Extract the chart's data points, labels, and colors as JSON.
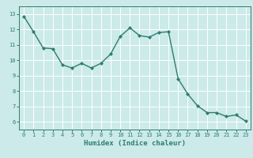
{
  "x": [
    0,
    1,
    2,
    3,
    4,
    5,
    6,
    7,
    8,
    9,
    10,
    11,
    12,
    13,
    14,
    15,
    16,
    17,
    18,
    19,
    20,
    21,
    22,
    23
  ],
  "y": [
    12.85,
    11.85,
    10.8,
    10.75,
    9.7,
    9.5,
    9.8,
    9.5,
    9.8,
    10.4,
    11.55,
    12.1,
    11.6,
    11.5,
    11.8,
    11.85,
    8.8,
    7.8,
    7.05,
    6.6,
    6.6,
    6.35,
    6.45,
    6.05
  ],
  "xlabel": "Humidex (Indice chaleur)",
  "xtick_labels": [
    "0",
    "1",
    "2",
    "3",
    "4",
    "5",
    "6",
    "7",
    "8",
    "9",
    "10",
    "11",
    "12",
    "13",
    "14",
    "15",
    "16",
    "17",
    "18",
    "19",
    "20",
    "21",
    "22",
    "23"
  ],
  "yticks": [
    6,
    7,
    8,
    9,
    10,
    11,
    12,
    13
  ],
  "ylim": [
    5.5,
    13.5
  ],
  "xlim": [
    -0.5,
    23.5
  ],
  "line_color": "#2e7d6e",
  "marker_color": "#2e7d6e",
  "bg_color": "#cceaea",
  "plot_bg_color": "#cceaea",
  "grid_color": "#ffffff",
  "axis_color": "#2e7d6e",
  "tick_color": "#2e7d6e",
  "label_color": "#2e7d6e",
  "tick_fontsize": 5.0,
  "xlabel_fontsize": 6.5
}
